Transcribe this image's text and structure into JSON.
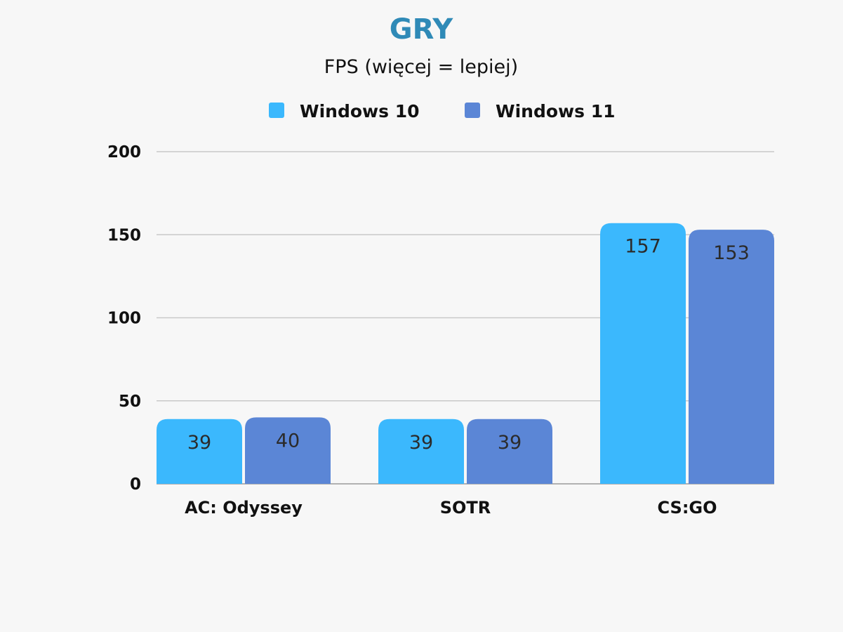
{
  "colors": {
    "title": "#2f8ab7",
    "text": "#111111",
    "value_text": "#2b2b2b",
    "grid": "#c9c9c9",
    "axis": "#9a9a9a",
    "background": "#f7f7f7"
  },
  "chart_data": {
    "type": "bar",
    "title": "GRY",
    "subtitle": "FPS (więcej = lepiej)",
    "categories": [
      "AC: Odyssey",
      "SOTR",
      "CS:GO"
    ],
    "series": [
      {
        "name": "Windows 10",
        "color": "#3bb8fd",
        "values": [
          39,
          39,
          157
        ]
      },
      {
        "name": "Windows 11",
        "color": "#5b86d6",
        "values": [
          40,
          39,
          153
        ]
      }
    ],
    "ylim": [
      0,
      200
    ],
    "yticks": [
      0,
      50,
      100,
      150,
      200
    ],
    "grid": true,
    "legend_position": "top",
    "data_labels": true
  }
}
